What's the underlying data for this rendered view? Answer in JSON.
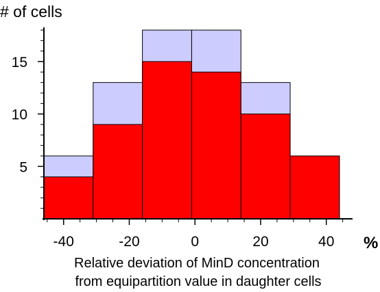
{
  "chart_data": {
    "type": "bar",
    "title": "",
    "ylabel": "# of cells",
    "xlabel": "Relative deviation of MinD concentration from equipartition value in daughter cells",
    "xlabel_lines": [
      "Relative deviation of MinD concentration",
      "from equipartition value in daughter cells"
    ],
    "x_unit": "%",
    "xlim": [
      -46,
      48
    ],
    "ylim": [
      0,
      18
    ],
    "x_ticks": [
      -40,
      -20,
      0,
      20,
      40
    ],
    "x_tick_labels": [
      "-40",
      "-20",
      "0",
      "20",
      "40"
    ],
    "y_ticks": [
      5,
      10,
      15
    ],
    "y_tick_labels": [
      "5",
      "10",
      "15"
    ],
    "bin_edges": [
      -46,
      -31,
      -16,
      -1,
      14,
      29,
      44
    ],
    "series": [
      {
        "values": [
          4,
          9,
          15,
          14,
          10,
          6
        ],
        "color": "#ff0000"
      },
      {
        "values": [
          6,
          13,
          18,
          18,
          13,
          6
        ],
        "color": "#ccccff"
      }
    ],
    "grid": false,
    "legend": "none"
  }
}
